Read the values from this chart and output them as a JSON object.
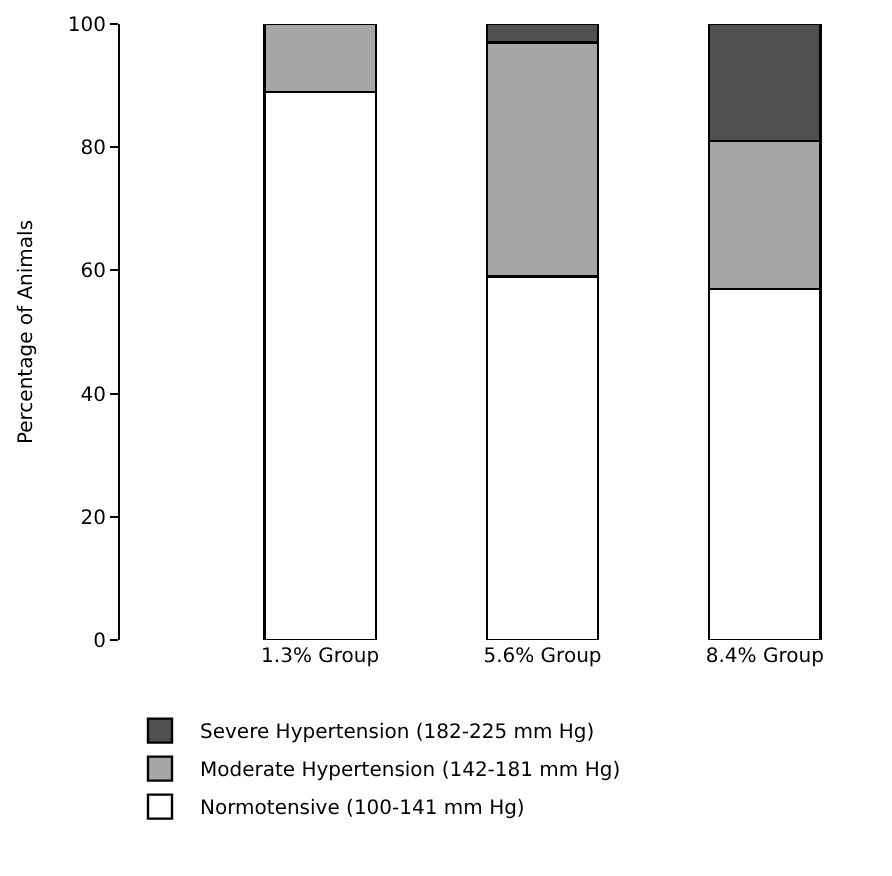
{
  "chart_data": {
    "type": "bar",
    "stacked": true,
    "ylabel": "Percentage of Animals",
    "categories": [
      "1.3% Group",
      "5.6% Group",
      "8.4% Group"
    ],
    "series": [
      {
        "name": "Normotensive (100-141 mm Hg)",
        "color": "#ffffff",
        "values": [
          89,
          59,
          57
        ]
      },
      {
        "name": "Moderate Hypertension (142-181 mm Hg)",
        "color": "#a6a6a6",
        "values": [
          11,
          38,
          24
        ]
      },
      {
        "name": "Severe Hypertension (182-225 mm Hg)",
        "color": "#505050",
        "values": [
          null,
          3,
          19
        ]
      }
    ],
    "ylim": [
      0,
      100
    ],
    "yticks": [
      0,
      20,
      40,
      60,
      80,
      100
    ],
    "legend": "bottom"
  }
}
